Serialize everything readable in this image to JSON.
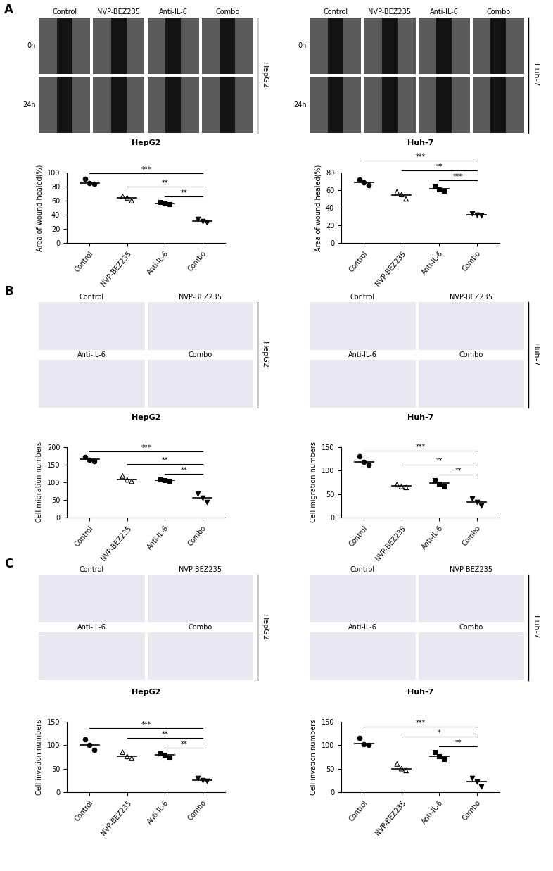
{
  "chart_data": [
    {
      "type": "scatter",
      "title": "HepG2",
      "y_label": "Area of wound healed(%)",
      "categories": [
        "Control",
        "NVP-BEZ235",
        "Anti-IL-6",
        "Combo"
      ],
      "values": [
        [
          91,
          85,
          84
        ],
        [
          66,
          64,
          60
        ],
        [
          58,
          56,
          55
        ],
        [
          34,
          31,
          29
        ]
      ],
      "means": [
        85,
        64,
        56.5,
        31
      ],
      "ylim": [
        0,
        100
      ],
      "yticks": [
        0,
        20,
        40,
        60,
        80,
        100
      ],
      "comparisons": [
        {
          "groups": [
            "Control",
            "Combo"
          ],
          "label": "***"
        },
        {
          "groups": [
            "NVP-BEZ235",
            "Combo"
          ],
          "label": "**"
        },
        {
          "groups": [
            "Anti-IL-6",
            "Combo"
          ],
          "label": "**"
        }
      ]
    },
    {
      "type": "scatter",
      "title": "Huh-7",
      "y_label": "Area of wound healed(%)",
      "categories": [
        "Control",
        "NVP-BEZ235",
        "Anti-IL-6",
        "Combo"
      ],
      "values": [
        [
          72,
          69,
          66
        ],
        [
          58,
          55,
          50
        ],
        [
          65,
          61,
          59
        ],
        [
          34,
          32,
          31
        ]
      ],
      "means": [
        69,
        54.5,
        61.5,
        32
      ],
      "ylim": [
        0,
        80
      ],
      "yticks": [
        0,
        20,
        40,
        60,
        80
      ],
      "comparisons": [
        {
          "groups": [
            "Control",
            "Combo"
          ],
          "label": "***"
        },
        {
          "groups": [
            "NVP-BEZ235",
            "Combo"
          ],
          "label": "**"
        },
        {
          "groups": [
            "Anti-IL-6",
            "Combo"
          ],
          "label": "***"
        }
      ]
    },
    {
      "type": "scatter",
      "title": "HepG2",
      "y_label": "Cell migration numbers",
      "categories": [
        "Control",
        "NVP-BEZ235",
        "Anti-IL-6",
        "Combo"
      ],
      "values": [
        [
          172,
          165,
          160
        ],
        [
          118,
          107,
          103
        ],
        [
          108,
          106,
          104
        ],
        [
          68,
          56,
          45
        ]
      ],
      "means": [
        166,
        108,
        106,
        57
      ],
      "ylim": [
        0,
        200
      ],
      "yticks": [
        0,
        50,
        100,
        150,
        200
      ],
      "comparisons": [
        {
          "groups": [
            "Control",
            "Combo"
          ],
          "label": "***"
        },
        {
          "groups": [
            "NVP-BEZ235",
            "Combo"
          ],
          "label": "**"
        },
        {
          "groups": [
            "Anti-IL-6",
            "Combo"
          ],
          "label": "**"
        }
      ]
    },
    {
      "type": "scatter",
      "title": "Huh-7",
      "y_label": "Cell migration numbers",
      "categories": [
        "Control",
        "NVP-BEZ235",
        "Anti-IL-6",
        "Combo"
      ],
      "values": [
        [
          130,
          118,
          112
        ],
        [
          70,
          66,
          64
        ],
        [
          80,
          72,
          66
        ],
        [
          40,
          33,
          25
        ]
      ],
      "means": [
        118,
        67,
        73,
        33
      ],
      "ylim": [
        0,
        150
      ],
      "yticks": [
        0,
        50,
        100,
        150
      ],
      "comparisons": [
        {
          "groups": [
            "Control",
            "Combo"
          ],
          "label": "***"
        },
        {
          "groups": [
            "NVP-BEZ235",
            "Combo"
          ],
          "label": "**"
        },
        {
          "groups": [
            "Anti-IL-6",
            "Combo"
          ],
          "label": "**"
        }
      ]
    },
    {
      "type": "scatter",
      "title": "HepG2",
      "y_label": "Cell invation numbers",
      "categories": [
        "Control",
        "NVP-BEZ235",
        "Anti-IL-6",
        "Combo"
      ],
      "values": [
        [
          112,
          100,
          90
        ],
        [
          85,
          76,
          72
        ],
        [
          83,
          80,
          74
        ],
        [
          30,
          26,
          24
        ]
      ],
      "means": [
        100,
        77,
        79,
        26
      ],
      "ylim": [
        0,
        150
      ],
      "yticks": [
        0,
        50,
        100,
        150
      ],
      "comparisons": [
        {
          "groups": [
            "Control",
            "Combo"
          ],
          "label": "***"
        },
        {
          "groups": [
            "NVP-BEZ235",
            "Combo"
          ],
          "label": "**"
        },
        {
          "groups": [
            "Anti-IL-6",
            "Combo"
          ],
          "label": "**"
        }
      ]
    },
    {
      "type": "scatter",
      "title": "Huh-7",
      "y_label": "Cell invation numbers",
      "categories": [
        "Control",
        "NVP-BEZ235",
        "Anti-IL-6",
        "Combo"
      ],
      "values": [
        [
          115,
          102,
          100
        ],
        [
          60,
          50,
          46
        ],
        [
          85,
          76,
          70
        ],
        [
          30,
          22,
          12
        ]
      ],
      "means": [
        103,
        50,
        76,
        22
      ],
      "ylim": [
        0,
        150
      ],
      "yticks": [
        0,
        50,
        100,
        150
      ],
      "comparisons": [
        {
          "groups": [
            "Control",
            "Combo"
          ],
          "label": "***"
        },
        {
          "groups": [
            "NVP-BEZ235",
            "Combo"
          ],
          "label": "*"
        },
        {
          "groups": [
            "Anti-IL-6",
            "Combo"
          ],
          "label": "**"
        }
      ]
    }
  ],
  "panels": [
    {
      "label": "A",
      "image_sets": [
        {
          "cell_line": "HepG2",
          "columns": [
            "Control",
            "NVP-BEZ235",
            "Anti-IL-6",
            "Combo"
          ],
          "rows": [
            "0h",
            "24h"
          ]
        },
        {
          "cell_line": "Huh-7",
          "columns": [
            "Control",
            "NVP-BEZ235",
            "Anti-IL-6",
            "Combo"
          ],
          "rows": [
            "0h",
            "24h"
          ]
        }
      ]
    },
    {
      "label": "B",
      "image_sets": [
        {
          "cell_line": "HepG2",
          "tiles": [
            "Control",
            "NVP-BEZ235",
            "Anti-IL-6",
            "Combo"
          ]
        },
        {
          "cell_line": "Huh-7",
          "tiles": [
            "Control",
            "NVP-BEZ235",
            "Anti-IL-6",
            "Combo"
          ]
        }
      ]
    },
    {
      "label": "C",
      "image_sets": [
        {
          "cell_line": "HepG2",
          "tiles": [
            "Control",
            "NVP-BEZ235",
            "Anti-IL-6",
            "Combo"
          ]
        },
        {
          "cell_line": "Huh-7",
          "tiles": [
            "Control",
            "NVP-BEZ235",
            "Anti-IL-6",
            "Combo"
          ]
        }
      ]
    }
  ]
}
